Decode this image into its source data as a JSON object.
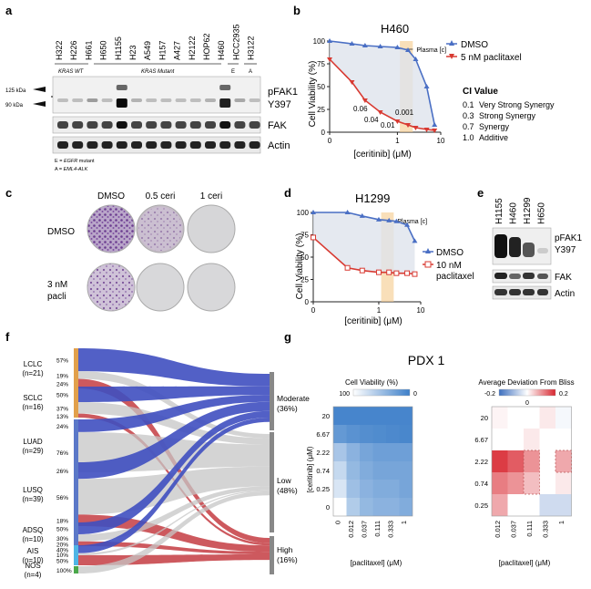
{
  "panel_letters": {
    "a": "a",
    "b": "b",
    "c": "c",
    "d": "d",
    "e": "e",
    "f": "f",
    "g": "g"
  },
  "panel_a": {
    "cell_lines": [
      "H322",
      "H226",
      "H661",
      "H650",
      "H1155",
      "H23",
      "A549",
      "H157",
      "A427",
      "H2122",
      "HOP62",
      "H460",
      "HCC2935",
      "H3122"
    ],
    "groups": [
      "KRAS WT",
      "KRAS Mutant",
      "E",
      "A"
    ],
    "markers": [
      "125 kDa",
      "90 kDa"
    ],
    "bands": [
      "pFAK1\nY397",
      "FAK",
      "Actin"
    ],
    "footnote_e": "E = EGFR mutant",
    "footnote_a": "A = EML4-ALK"
  },
  "panel_b": {
    "title": "H460",
    "xlabel": "[ceritinib] (μM)",
    "ylabel": "Cell Viability (%)",
    "plasma_label": "Plasma [c]",
    "legend": [
      "DMSO",
      "5 nM paclitaxel"
    ],
    "ci_annotations": [
      "0.06",
      "0.04",
      "0.01",
      "0.001"
    ],
    "ci_title": "CI Value",
    "ci_rows": [
      {
        "value": "0.1",
        "label": "Very Strong Synergy"
      },
      {
        "value": "0.3",
        "label": "Strong Synergy"
      },
      {
        "value": "0.7",
        "label": "Synergy"
      },
      {
        "value": "1.0",
        "label": "Additive"
      }
    ],
    "x_ticks": [
      "0",
      "1",
      "10"
    ],
    "y_ticks": [
      "0",
      "25",
      "50",
      "75",
      "100"
    ]
  },
  "panel_c": {
    "col_labels": [
      "DMSO",
      "0.5 ceri",
      "1 ceri"
    ],
    "row_labels": [
      "DMSO",
      "3 nM\npacli"
    ]
  },
  "panel_d": {
    "title": "H1299",
    "xlabel": "[ceritinib] (μM)",
    "ylabel": "Cell Viability (%)",
    "plasma_label": "Plasma [c]",
    "legend": [
      "DMSO",
      "10 nM\npaclitaxel"
    ],
    "x_ticks": [
      "0",
      "1",
      "10"
    ],
    "y_ticks": [
      "0",
      "25",
      "50",
      "75",
      "100"
    ]
  },
  "panel_e": {
    "cell_lines": [
      "H1155",
      "H460",
      "H1299",
      "H650"
    ],
    "bands": [
      "pFAK1\nY397",
      "FAK",
      "Actin"
    ]
  },
  "panel_f": {
    "left_groups": [
      {
        "name": "LCLC",
        "n": "(n=21)",
        "pcts": [
          "57%",
          "19%",
          "24%"
        ]
      },
      {
        "name": "SCLC",
        "n": "(n=16)",
        "pcts": [
          "50%",
          "37%",
          "13%"
        ]
      },
      {
        "name": "LUAD",
        "n": "(n=29)",
        "pcts": [
          "24%",
          "76%"
        ]
      },
      {
        "name": "LUSQ",
        "n": "(n=39)",
        "pcts": [
          "26%",
          "56%",
          "18%"
        ]
      },
      {
        "name": "ADSQ",
        "n": "(n=10)",
        "pcts": [
          "50%",
          "30%",
          "20%"
        ]
      },
      {
        "name": "AIS",
        "n": "(n=10)",
        "pcts": [
          "40%",
          "10%",
          "50%"
        ]
      },
      {
        "name": "NOS",
        "n": "(n=4)",
        "pcts": [
          "100%"
        ]
      }
    ],
    "right_groups": [
      {
        "name": "Moderate",
        "pct": "(36%)"
      },
      {
        "name": "Low",
        "pct": "(48%)"
      },
      {
        "name": "High",
        "pct": "(16%)"
      }
    ]
  },
  "panel_g": {
    "title": "PDX 1",
    "left_title": "Cell Viability (%)",
    "left_scale": [
      "100",
      "0"
    ],
    "right_title": "Average Deviation From Bliss",
    "right_scale": [
      "-0.2",
      "0",
      "0.2"
    ],
    "ylabel": "[ceritinib] (μM)",
    "xlabel": "[paclitaxel] (μM)",
    "left_y_ticks": [
      "20",
      "6.67",
      "2.22",
      "0.74",
      "0.25",
      "0"
    ],
    "right_y_ticks": [
      "20",
      "6.67",
      "2.22",
      "0.74",
      "0.25"
    ],
    "x_ticks": [
      "0",
      "0.012",
      "0.037",
      "0.111",
      "0.333",
      "1"
    ],
    "right_x_ticks": [
      "0.012",
      "0.037",
      "0.111",
      "0.333",
      "1"
    ]
  },
  "chart_data": [
    {
      "type": "line",
      "title": "H460",
      "xlabel": "[ceritinib] (μM)",
      "ylabel": "Cell Viability (%)",
      "x": [
        0,
        0.12,
        0.25,
        0.5,
        1,
        1.5,
        2,
        3,
        4
      ],
      "series": [
        {
          "name": "DMSO",
          "color": "#4a6fc4",
          "values": [
            100,
            97,
            95,
            94,
            93,
            90,
            80,
            50,
            8
          ]
        },
        {
          "name": "5 nM paclitaxel",
          "color": "#d83a32",
          "values": [
            80,
            55,
            35,
            22,
            12,
            8,
            5,
            3,
            2
          ]
        }
      ],
      "ylim": [
        0,
        100
      ]
    },
    {
      "type": "line",
      "title": "H1299",
      "xlabel": "[ceritinib] (μM)",
      "ylabel": "Cell Viability (%)",
      "x": [
        0,
        0.25,
        0.5,
        1,
        1.5,
        2,
        3,
        4
      ],
      "series": [
        {
          "name": "DMSO",
          "color": "#4a6fc4",
          "values": [
            100,
            100,
            96,
            92,
            91,
            90,
            86,
            68
          ]
        },
        {
          "name": "10 nM paclitaxel",
          "color": "#d83a32",
          "values": [
            72,
            38,
            35,
            33,
            33,
            32,
            32,
            31
          ]
        }
      ],
      "ylim": [
        0,
        100
      ]
    },
    {
      "type": "heatmap",
      "title": "Cell Viability (%)",
      "rows": [
        "20",
        "6.67",
        "2.22",
        "0.74",
        "0.25",
        "0"
      ],
      "cols": [
        "0",
        "0.012",
        "0.037",
        "0.111",
        "0.333",
        "1"
      ],
      "values": [
        [
          5,
          5,
          5,
          5,
          5,
          5
        ],
        [
          20,
          15,
          12,
          10,
          8,
          6
        ],
        [
          55,
          40,
          30,
          25,
          25,
          25
        ],
        [
          70,
          45,
          35,
          30,
          30,
          30
        ],
        [
          80,
          50,
          40,
          35,
          35,
          30
        ],
        [
          100,
          60,
          45,
          40,
          40,
          35
        ]
      ]
    },
    {
      "type": "heatmap",
      "title": "Average Deviation From Bliss",
      "rows": [
        "20",
        "6.67",
        "2.22",
        "0.74",
        "0.25"
      ],
      "cols": [
        "0.012",
        "0.037",
        "0.111",
        "0.333",
        "1"
      ],
      "values": [
        [
          0.01,
          0.0,
          0.0,
          0.02,
          -0.01
        ],
        [
          0.0,
          0.0,
          0.02,
          0.0,
          0.0
        ],
        [
          0.18,
          0.15,
          0.1,
          0.0,
          0.08
        ],
        [
          0.12,
          0.1,
          0.06,
          0.0,
          0.02
        ],
        [
          0.08,
          0.0,
          0.0,
          -0.05,
          -0.05
        ]
      ]
    }
  ]
}
